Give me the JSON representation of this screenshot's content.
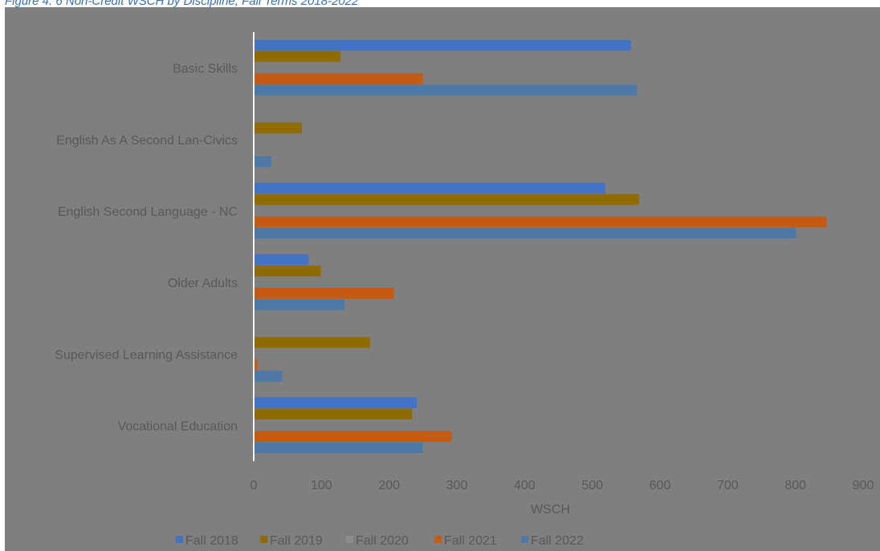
{
  "figure": {
    "caption": "Figure 4. 6 Non-Credit WSCH by Discipline, Fall Terms 2018-2022"
  },
  "chart_data": {
    "type": "bar",
    "orientation": "horizontal",
    "title": "",
    "xlabel": "WSCH",
    "ylabel": "",
    "xlim": [
      0,
      900
    ],
    "x_ticks": [
      0,
      100,
      200,
      300,
      400,
      500,
      600,
      700,
      800,
      900
    ],
    "grid": false,
    "legend_position": "bottom",
    "categories": [
      "Basic Skills",
      "English As A Second Lan-Civics",
      "English Second Language - NC",
      "Older Adults",
      "Supervised Learning Assistance",
      "Vocational Education"
    ],
    "series": [
      {
        "name": "Fall 2018",
        "color": "#4472c4",
        "values": [
          557,
          0,
          519,
          81,
          0,
          241
        ]
      },
      {
        "name": "Fall 2019",
        "color": "#8f6b00",
        "values": [
          128,
          71,
          569,
          99,
          172,
          234
        ]
      },
      {
        "name": "Fall 2020",
        "color": "#8c8c8c",
        "values": [
          0,
          0,
          0,
          0,
          0,
          0
        ]
      },
      {
        "name": "Fall 2021",
        "color": "#c55a11",
        "values": [
          250,
          0,
          846,
          207,
          5,
          292
        ]
      },
      {
        "name": "Fall 2022",
        "color": "#4e79a7",
        "values": [
          566,
          26,
          801,
          134,
          42,
          250
        ]
      }
    ]
  }
}
